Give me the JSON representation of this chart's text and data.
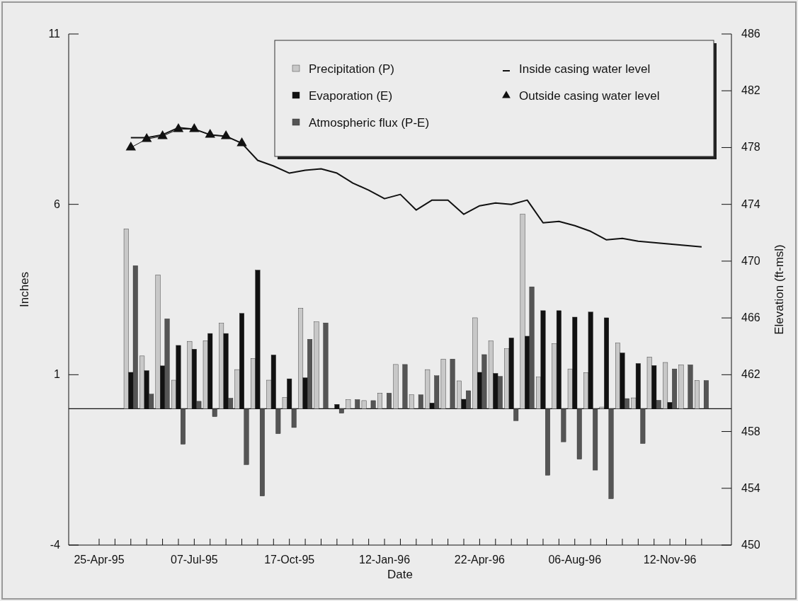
{
  "chart_data": {
    "type": "bar",
    "xlabel": "Date",
    "ylabel": "Inches",
    "y2label": "Elevation (ft-msl)",
    "categories": [
      "25-Apr-95",
      null,
      null,
      null,
      null,
      null,
      "07-Jul-95",
      null,
      null,
      null,
      null,
      null,
      "17-Oct-95",
      null,
      null,
      null,
      null,
      null,
      "12-Jan-96",
      null,
      null,
      null,
      null,
      null,
      "22-Apr-96",
      null,
      null,
      null,
      null,
      null,
      "06-Aug-96",
      null,
      null,
      null,
      null,
      null,
      "12-Nov-96",
      null,
      null
    ],
    "series": [
      {
        "name": "Precipitation (P)",
        "color": "#c8c8c8",
        "values": [
          null,
          null,
          5.28,
          1.55,
          3.93,
          0.84,
          1.98,
          2.0,
          2.51,
          1.15,
          1.48,
          0.84,
          0.33,
          2.95,
          2.55,
          0,
          0.27,
          0.24,
          0.46,
          1.3,
          0.41,
          1.15,
          1.46,
          0.82,
          2.67,
          1.99,
          1.76,
          5.71,
          0.93,
          1.91,
          1.17,
          1.06,
          0.05,
          1.93,
          0.32,
          1.52,
          1.36,
          1.29,
          0.83
        ]
      },
      {
        "name": "Evaporation (E)",
        "color": "#111111",
        "values": [
          null,
          null,
          1.07,
          1.12,
          1.26,
          1.86,
          1.75,
          2.21,
          2.21,
          2.8,
          4.07,
          1.58,
          0.88,
          0.91,
          0,
          0.13,
          0,
          0,
          0,
          0,
          0,
          0.17,
          0,
          0.28,
          1.07,
          1.04,
          2.08,
          2.13,
          2.88,
          2.88,
          2.69,
          2.84,
          2.67,
          1.64,
          1.33,
          1.27,
          0.19,
          0,
          0
        ]
      },
      {
        "name": "Atmospheric flux (P-E)",
        "color": "#555555",
        "values": [
          null,
          null,
          4.2,
          0.43,
          2.64,
          -1.04,
          0.22,
          -0.23,
          0.31,
          -1.64,
          -2.56,
          -0.73,
          -0.55,
          2.04,
          2.52,
          -0.13,
          0.27,
          0.24,
          0.46,
          1.3,
          0.41,
          0.97,
          1.46,
          0.53,
          1.59,
          0.95,
          -0.35,
          3.58,
          -1.95,
          -0.97,
          -1.48,
          -1.8,
          -2.64,
          0.3,
          -1.02,
          0.25,
          1.17,
          1.29,
          0.83
        ]
      },
      {
        "name": "Inside casing water level",
        "type": "line",
        "axis": "y2",
        "marker": "none",
        "color": "#111111",
        "values": [
          null,
          null,
          478.7,
          478.7,
          478.9,
          479.4,
          479.3,
          478.9,
          478.8,
          478.3,
          477.1,
          476.7,
          476.2,
          476.4,
          476.5,
          476.2,
          475.5,
          475.0,
          474.4,
          474.7,
          473.6,
          474.3,
          474.3,
          473.3,
          473.9,
          474.1,
          474.0,
          474.3,
          472.7,
          472.8,
          472.5,
          472.1,
          471.5,
          471.6,
          471.4,
          471.3,
          471.2,
          471.1,
          471.0
        ]
      },
      {
        "name": "Outside casing water level",
        "type": "line",
        "axis": "y2",
        "marker": "triangle",
        "color": "#111111",
        "values": [
          null,
          null,
          478.0,
          478.6,
          478.8,
          479.3,
          479.3,
          478.9,
          478.8,
          478.3,
          null,
          null,
          null,
          null,
          null,
          null,
          null,
          null,
          null,
          null,
          null,
          null,
          null,
          null,
          null,
          null,
          null,
          null,
          null,
          null,
          null,
          null,
          null,
          null,
          null,
          null,
          null,
          null,
          null
        ]
      }
    ],
    "ylim": [
      -4,
      11
    ],
    "yticks": [
      -4,
      1,
      6,
      11
    ],
    "y2lim": [
      450,
      486
    ],
    "y2ticks": [
      450,
      454,
      458,
      462,
      466,
      470,
      474,
      478,
      482,
      486
    ],
    "ref_lines": [
      {
        "axis": "y",
        "value": 0,
        "color": "#111111"
      }
    ],
    "legend": "top right",
    "grid": false
  }
}
